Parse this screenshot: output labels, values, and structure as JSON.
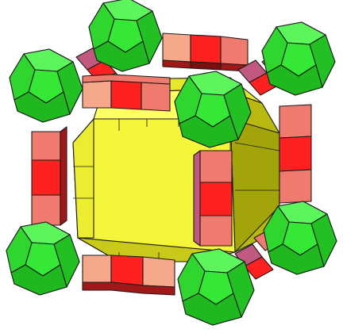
{
  "figure": {
    "subject": "polyhedral-cluster",
    "colors": {
      "background": "#ffffff",
      "core_face": "#f5f53a",
      "core_face_light": "#ffff66",
      "core_face_dark": "#c9c91a",
      "core_side": "#b8b80e",
      "core_side_dark": "#8f8f06",
      "node_face": "#35e835",
      "node_light": "#5cf55c",
      "node_dark": "#1fb81f",
      "link_red": "#ff2020",
      "link_salmon": "#f07a6e",
      "link_peach": "#f5a98a",
      "link_dark": "#a01818",
      "link_mauve": "#c05880",
      "outline": "#1a1a1a"
    }
  }
}
